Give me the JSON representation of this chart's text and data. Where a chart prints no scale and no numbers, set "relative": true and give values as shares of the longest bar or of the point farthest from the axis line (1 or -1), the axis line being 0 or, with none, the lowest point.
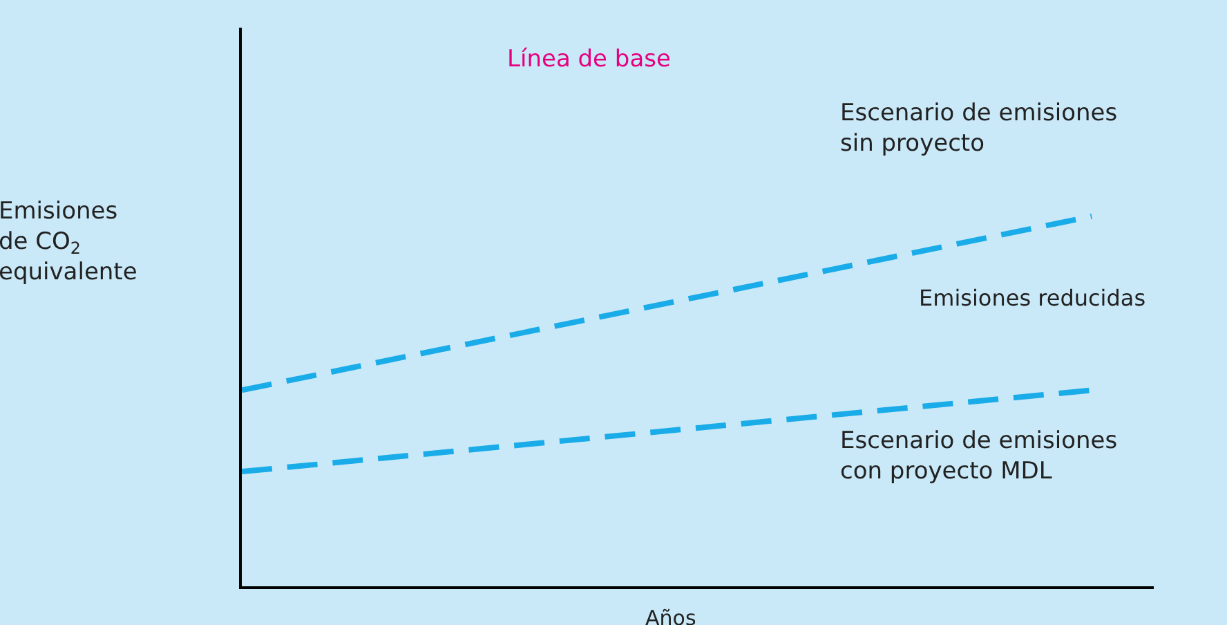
{
  "chart_data": {
    "type": "line",
    "title": "Línea de base",
    "xlabel": "Años",
    "ylabel": "Emisiones\nde CO$_{2}$\nequivalente",
    "relative": true,
    "categories": [
      null,
      null
    ],
    "line_style": "dashed",
    "marker": "none",
    "legend": false,
    "grid": false,
    "series": [
      {
        "name": "Escenario de emisiones\nsin proyecto",
        "color": "#1aace8",
        "values": [
          0.53,
          1
        ]
      },
      {
        "name": "Escenario de emisiones\ncon proyecto MDL",
        "color": "#1aace8",
        "values": [
          0.31,
          0.53
        ]
      }
    ],
    "annotations": [
      "Emisiones reducidas"
    ]
  }
}
